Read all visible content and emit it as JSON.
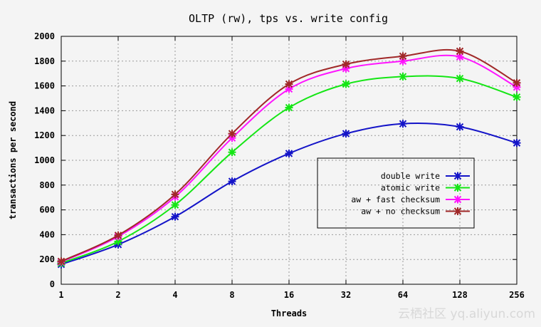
{
  "watermark": "云栖社区 yq.aliyun.com",
  "chart_data": {
    "type": "line",
    "title": "OLTP (rw), tps vs. write config",
    "xlabel": "Threads",
    "ylabel": "transactions per second",
    "x_scale": "log2",
    "x": [
      1,
      2,
      4,
      8,
      16,
      32,
      64,
      128,
      256
    ],
    "x_tick_labels": [
      "1",
      "2",
      "4",
      "8",
      "16",
      "32",
      "64",
      "128",
      "256"
    ],
    "ylim": [
      0,
      2000
    ],
    "y_ticks": [
      0,
      200,
      400,
      600,
      800,
      1000,
      1200,
      1400,
      1600,
      1800,
      2000
    ],
    "grid": true,
    "legend_position": "center-right",
    "series": [
      {
        "name": "double write",
        "color": "#1414c8",
        "values": [
          160,
          320,
          545,
          830,
          1055,
          1215,
          1295,
          1270,
          1140
        ]
      },
      {
        "name": "atomic write",
        "color": "#14e614",
        "values": [
          170,
          345,
          640,
          1065,
          1425,
          1615,
          1675,
          1660,
          1510
        ]
      },
      {
        "name": "aw + fast checksum",
        "color": "#ff14ff",
        "values": [
          180,
          385,
          705,
          1180,
          1575,
          1740,
          1800,
          1835,
          1590
        ]
      },
      {
        "name": "aw + no checksum",
        "color": "#a02828",
        "values": [
          185,
          395,
          725,
          1215,
          1615,
          1775,
          1840,
          1880,
          1625
        ]
      }
    ]
  }
}
